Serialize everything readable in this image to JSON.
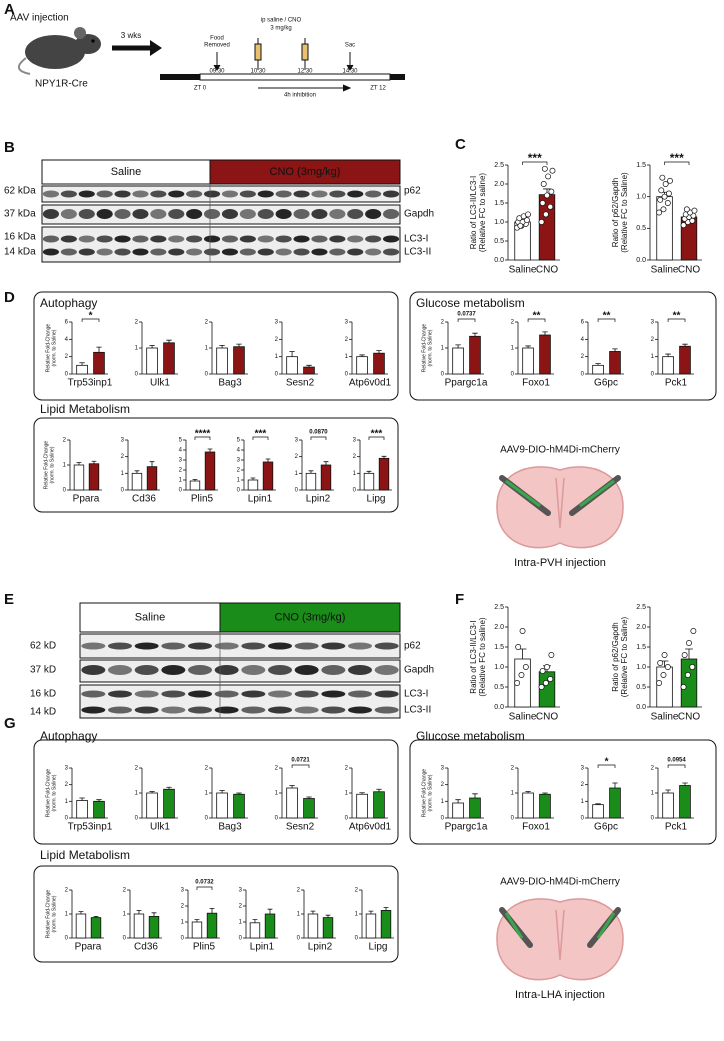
{
  "panel_labels": [
    "A",
    "B",
    "C",
    "D",
    "E",
    "F",
    "G"
  ],
  "timeline": {
    "injection_title": "AAV injection",
    "strain": "NPY1R-Cre",
    "wait": "3 wks",
    "food": [
      "Food",
      "Removed"
    ],
    "treatment": [
      "ip saline / CNO",
      "3 mg/kg"
    ],
    "sac": "Sac",
    "times": [
      "09:30",
      "10:30",
      "12:30",
      "14:30"
    ],
    "start": "ZT 0",
    "end": "ZT 12",
    "window": "4h inhibition"
  },
  "blots": [
    {
      "conditions": [
        "Saline",
        "CNO (3mg/kg)"
      ],
      "color": "#8b1414",
      "markers": [
        "62 kDa",
        "37 kDa",
        "16 kDa",
        "14 kDa"
      ],
      "proteins": [
        "p62",
        "Gapdh",
        "LC3-I",
        "LC3-II"
      ]
    },
    {
      "conditions": [
        "Saline",
        "CNO (3mg/kg)"
      ],
      "color": "#1a8c1a",
      "markers": [
        "62 kD",
        "37 kD",
        "16 kD",
        "14 kD"
      ],
      "proteins": [
        "p62",
        "Gapdh",
        "LC3-I",
        "LC3-II"
      ]
    }
  ],
  "groups": [
    "Autophagy",
    "Glucose metabolism",
    "Lipid Metabolism",
    "Autophagy",
    "Glucose metabolism",
    "Lipid Metabolism"
  ],
  "illustrations": [
    {
      "vector": "AAV9-DIO-hM4Di-mCherry",
      "site": "Intra-PVH injection"
    },
    {
      "vector": "AAV9-DIO-hM4Di-mCherry",
      "site": "Intra-LHA injection"
    }
  ],
  "chart_data": [
    {
      "type": "bar",
      "categories": [
        "Saline",
        "CNO"
      ],
      "ylabel": [
        "Ratio of LC3-II/LC3-I",
        "(Relative FC to saline)"
      ],
      "colors": [
        "#ffffff",
        "#8b1414"
      ],
      "values": [
        1.0,
        1.72
      ],
      "errors": [
        0.05,
        0.15
      ],
      "points": [
        [
          0.85,
          0.9,
          0.95,
          1.0,
          1.0,
          1.05,
          1.1,
          1.15,
          1.2,
          0.9
        ],
        [
          1.0,
          1.2,
          1.4,
          1.5,
          1.7,
          1.8,
          2.0,
          2.2,
          2.35,
          2.4
        ]
      ],
      "ylim": [
        0,
        2.5
      ],
      "yticks": [
        {
          "value": 0,
          "label": "0.0"
        },
        {
          "value": 0.5,
          "label": "0.5"
        },
        {
          "value": 1,
          "label": "1.0"
        },
        {
          "value": 1.5,
          "label": "1.5"
        },
        {
          "value": 2,
          "label": "2.0"
        },
        {
          "value": 2.5,
          "label": "2.5"
        }
      ],
      "significance": "***"
    },
    {
      "type": "bar",
      "categories": [
        "Saline",
        "CNO"
      ],
      "ylabel": [
        "Ratio of p62/Gapdh",
        "(Relative FC to Saline)"
      ],
      "colors": [
        "#ffffff",
        "#8b1414"
      ],
      "values": [
        1.0,
        0.68
      ],
      "errors": [
        0.07,
        0.04
      ],
      "points": [
        [
          0.75,
          0.8,
          0.9,
          0.95,
          1.0,
          1.05,
          1.1,
          1.2,
          1.25,
          1.3
        ],
        [
          0.55,
          0.6,
          0.62,
          0.65,
          0.68,
          0.7,
          0.72,
          0.75,
          0.78,
          0.8
        ]
      ],
      "ylim": [
        0,
        1.5
      ],
      "yticks": [
        {
          "value": 0,
          "label": "0.0"
        },
        {
          "value": 0.5,
          "label": "0.5"
        },
        {
          "value": 1,
          "label": "1.0"
        },
        {
          "value": 1.5,
          "label": "1.5"
        }
      ],
      "significance": "***"
    },
    {
      "type": "bar",
      "xlabel": "Trp53inp1",
      "ylabel": [
        "Relative Fold-Change",
        "(norm. to Saline)"
      ],
      "colors": [
        "#ffffff",
        "#8b1414"
      ],
      "values": [
        1.0,
        2.5
      ],
      "errors": [
        0.3,
        0.6
      ],
      "ylim": [
        0,
        6
      ],
      "yticks": [
        0,
        2,
        4,
        6
      ],
      "significance": "*"
    },
    {
      "type": "bar",
      "xlabel": "Ulk1",
      "colors": [
        "#ffffff",
        "#8b1414"
      ],
      "values": [
        1.0,
        1.2
      ],
      "errors": [
        0.1,
        0.1
      ],
      "ylim": [
        0,
        2
      ],
      "yticks": [
        0,
        1,
        2
      ]
    },
    {
      "type": "bar",
      "xlabel": "Bag3",
      "colors": [
        "#ffffff",
        "#8b1414"
      ],
      "values": [
        1.0,
        1.05
      ],
      "errors": [
        0.1,
        0.1
      ],
      "ylim": [
        0,
        2
      ],
      "yticks": [
        0,
        1,
        2
      ]
    },
    {
      "type": "bar",
      "xlabel": "Sesn2",
      "colors": [
        "#ffffff",
        "#8b1414"
      ],
      "values": [
        1.0,
        0.4
      ],
      "errors": [
        0.3,
        0.1
      ],
      "ylim": [
        0,
        3
      ],
      "yticks": [
        0,
        1,
        2,
        3
      ]
    },
    {
      "type": "bar",
      "xlabel": "Atp6v0d1",
      "colors": [
        "#ffffff",
        "#8b1414"
      ],
      "values": [
        1.0,
        1.2
      ],
      "errors": [
        0.1,
        0.15
      ],
      "ylim": [
        0,
        3
      ],
      "yticks": [
        0,
        1,
        2,
        3
      ]
    },
    {
      "type": "bar",
      "xlabel": "Ppargc1a",
      "ylabel": [
        "Relative Fold-Change",
        "(norm. to Saline)"
      ],
      "colors": [
        "#ffffff",
        "#8b1414"
      ],
      "values": [
        1.0,
        1.45
      ],
      "errors": [
        0.12,
        0.12
      ],
      "ylim": [
        0,
        2
      ],
      "yticks": [
        0,
        1,
        2
      ],
      "significance": "0.0737"
    },
    {
      "type": "bar",
      "xlabel": "Foxo1",
      "colors": [
        "#ffffff",
        "#8b1414"
      ],
      "values": [
        1.0,
        1.5
      ],
      "errors": [
        0.08,
        0.12
      ],
      "ylim": [
        0,
        2
      ],
      "yticks": [
        0,
        1,
        2
      ],
      "significance": "**"
    },
    {
      "type": "bar",
      "xlabel": "G6pc",
      "colors": [
        "#ffffff",
        "#8b1414"
      ],
      "values": [
        1.0,
        2.6
      ],
      "errors": [
        0.2,
        0.3
      ],
      "ylim": [
        0,
        6
      ],
      "yticks": [
        0,
        2,
        4,
        6
      ],
      "significance": "**"
    },
    {
      "type": "bar",
      "xlabel": "Pck1",
      "colors": [
        "#ffffff",
        "#8b1414"
      ],
      "values": [
        1.0,
        1.6
      ],
      "errors": [
        0.15,
        0.12
      ],
      "ylim": [
        0,
        3
      ],
      "yticks": [
        0,
        1,
        2,
        3
      ],
      "significance": "**"
    },
    {
      "type": "bar",
      "xlabel": "Ppara",
      "ylabel": [
        "Relative Fold-Change",
        "(norm. to Saline)"
      ],
      "colors": [
        "#ffffff",
        "#8b1414"
      ],
      "values": [
        1.0,
        1.05
      ],
      "errors": [
        0.1,
        0.1
      ],
      "ylim": [
        0,
        2
      ],
      "yticks": [
        0,
        1,
        2
      ]
    },
    {
      "type": "bar",
      "xlabel": "Cd36",
      "colors": [
        "#ffffff",
        "#8b1414"
      ],
      "values": [
        1.0,
        1.4
      ],
      "errors": [
        0.15,
        0.3
      ],
      "ylim": [
        0,
        3
      ],
      "yticks": [
        0,
        1,
        2,
        3
      ]
    },
    {
      "type": "bar",
      "xlabel": "Plin5",
      "colors": [
        "#ffffff",
        "#8b1414"
      ],
      "values": [
        0.9,
        3.8
      ],
      "errors": [
        0.15,
        0.3
      ],
      "ylim": [
        0,
        5
      ],
      "yticks": [
        0,
        1,
        2,
        3,
        4,
        5
      ],
      "significance": "****"
    },
    {
      "type": "bar",
      "xlabel": "Lpin1",
      "colors": [
        "#ffffff",
        "#8b1414"
      ],
      "values": [
        1.0,
        2.8
      ],
      "errors": [
        0.2,
        0.3
      ],
      "ylim": [
        0,
        5
      ],
      "yticks": [
        0,
        1,
        2,
        3,
        4,
        5
      ],
      "significance": "***"
    },
    {
      "type": "bar",
      "xlabel": "Lpin2",
      "colors": [
        "#ffffff",
        "#8b1414"
      ],
      "values": [
        1.0,
        1.5
      ],
      "errors": [
        0.15,
        0.2
      ],
      "ylim": [
        0,
        3
      ],
      "yticks": [
        0,
        1,
        2,
        3
      ],
      "significance": "0.0870"
    },
    {
      "type": "bar",
      "xlabel": "Lipg",
      "colors": [
        "#ffffff",
        "#8b1414"
      ],
      "values": [
        1.0,
        1.9
      ],
      "errors": [
        0.12,
        0.12
      ],
      "ylim": [
        0,
        3
      ],
      "yticks": [
        0,
        1,
        2,
        3
      ],
      "significance": "***"
    },
    {
      "type": "bar",
      "categories": [
        "Saline",
        "CNO"
      ],
      "ylabel": [
        "Ratio of LC3-II/LC3-I",
        "(Relative FC to saline)"
      ],
      "colors": [
        "#ffffff",
        "#1a8c1a"
      ],
      "values": [
        1.2,
        0.88
      ],
      "errors": [
        0.25,
        0.15
      ],
      "points": [
        [
          0.6,
          0.8,
          1.0,
          1.5,
          1.9
        ],
        [
          0.5,
          0.6,
          0.7,
          0.9,
          1.0,
          1.3
        ]
      ],
      "ylim": [
        0,
        2.5
      ],
      "yticks": [
        {
          "value": 0,
          "label": "0.0"
        },
        {
          "value": 0.5,
          "label": "0.5"
        },
        {
          "value": 1,
          "label": "1.0"
        },
        {
          "value": 1.5,
          "label": "1.5"
        },
        {
          "value": 2,
          "label": "2.0"
        },
        {
          "value": 2.5,
          "label": "2.5"
        }
      ]
    },
    {
      "type": "bar",
      "categories": [
        "Saline",
        "CNO"
      ],
      "ylabel": [
        "Ratio of p62/Gapdh",
        "(Relative FC to Saline)"
      ],
      "colors": [
        "#ffffff",
        "#1a8c1a"
      ],
      "values": [
        1.0,
        1.2
      ],
      "errors": [
        0.15,
        0.25
      ],
      "points": [
        [
          0.6,
          0.8,
          1.0,
          1.1,
          1.3
        ],
        [
          0.5,
          0.8,
          1.0,
          1.3,
          1.6,
          1.9
        ]
      ],
      "ylim": [
        0,
        2.5
      ],
      "yticks": [
        {
          "value": 0,
          "label": "0.0"
        },
        {
          "value": 0.5,
          "label": "0.5"
        },
        {
          "value": 1,
          "label": "1.0"
        },
        {
          "value": 1.5,
          "label": "1.5"
        },
        {
          "value": 2,
          "label": "2.0"
        },
        {
          "value": 2.5,
          "label": "2.5"
        }
      ]
    },
    {
      "type": "bar",
      "xlabel": "Trp53inp1",
      "ylabel": [
        "Relative Fold-Change",
        "(norm. to Saline)"
      ],
      "colors": [
        "#ffffff",
        "#1a8c1a"
      ],
      "values": [
        1.05,
        1.0
      ],
      "errors": [
        0.15,
        0.1
      ],
      "ylim": [
        0,
        3
      ],
      "yticks": [
        0,
        1,
        2,
        3
      ]
    },
    {
      "type": "bar",
      "xlabel": "Ulk1",
      "colors": [
        "#ffffff",
        "#1a8c1a"
      ],
      "values": [
        1.0,
        1.15
      ],
      "errors": [
        0.06,
        0.08
      ],
      "ylim": [
        0,
        2
      ],
      "yticks": [
        0,
        1,
        2
      ]
    },
    {
      "type": "bar",
      "xlabel": "Bag3",
      "colors": [
        "#ffffff",
        "#1a8c1a"
      ],
      "values": [
        1.0,
        0.95
      ],
      "errors": [
        0.1,
        0.05
      ],
      "ylim": [
        0,
        2
      ],
      "yticks": [
        0,
        1,
        2
      ]
    },
    {
      "type": "bar",
      "xlabel": "Sesn2",
      "colors": [
        "#ffffff",
        "#1a8c1a"
      ],
      "values": [
        1.2,
        0.78
      ],
      "errors": [
        0.1,
        0.06
      ],
      "ylim": [
        0,
        2
      ],
      "yticks": [
        0,
        1,
        2
      ],
      "significance": "0.0721"
    },
    {
      "type": "bar",
      "xlabel": "Atp6v0d1",
      "colors": [
        "#ffffff",
        "#1a8c1a"
      ],
      "values": [
        0.95,
        1.05
      ],
      "errors": [
        0.06,
        0.1
      ],
      "ylim": [
        0,
        2
      ],
      "yticks": [
        0,
        1,
        2
      ]
    },
    {
      "type": "bar",
      "xlabel": "Ppargc1a",
      "ylabel": [
        "Relative Fold-Change",
        "(norm. to Saline)"
      ],
      "colors": [
        "#ffffff",
        "#1a8c1a"
      ],
      "values": [
        0.9,
        1.2
      ],
      "errors": [
        0.2,
        0.25
      ],
      "ylim": [
        0,
        3
      ],
      "yticks": [
        0,
        1,
        2,
        3
      ]
    },
    {
      "type": "bar",
      "xlabel": "Foxo1",
      "colors": [
        "#ffffff",
        "#1a8c1a"
      ],
      "values": [
        1.0,
        0.95
      ],
      "errors": [
        0.06,
        0.05
      ],
      "ylim": [
        0,
        2
      ],
      "yticks": [
        0,
        1,
        2
      ]
    },
    {
      "type": "bar",
      "xlabel": "G6pc",
      "colors": [
        "#ffffff",
        "#1a8c1a"
      ],
      "values": [
        0.8,
        1.8
      ],
      "errors": [
        0.05,
        0.3
      ],
      "ylim": [
        0,
        3
      ],
      "yticks": [
        0,
        1,
        2,
        3
      ],
      "significance": "*"
    },
    {
      "type": "bar",
      "xlabel": "Pck1",
      "colors": [
        "#ffffff",
        "#1a8c1a"
      ],
      "values": [
        1.0,
        1.3
      ],
      "errors": [
        0.12,
        0.1
      ],
      "ylim": [
        0,
        2
      ],
      "yticks": [
        0,
        1,
        2
      ],
      "significance": "0.0954"
    },
    {
      "type": "bar",
      "xlabel": "Ppara",
      "ylabel": [
        "Relative Fold-Change",
        "(norm. to Saline)"
      ],
      "colors": [
        "#ffffff",
        "#1a8c1a"
      ],
      "values": [
        1.0,
        0.85
      ],
      "errors": [
        0.1,
        0.05
      ],
      "ylim": [
        0,
        2
      ],
      "yticks": [
        0,
        1,
        2
      ]
    },
    {
      "type": "bar",
      "xlabel": "Cd36",
      "colors": [
        "#ffffff",
        "#1a8c1a"
      ],
      "values": [
        1.0,
        0.9
      ],
      "errors": [
        0.15,
        0.15
      ],
      "ylim": [
        0,
        2
      ],
      "yticks": [
        0,
        1,
        2
      ]
    },
    {
      "type": "bar",
      "xlabel": "Plin5",
      "colors": [
        "#ffffff",
        "#1a8c1a"
      ],
      "values": [
        1.0,
        1.55
      ],
      "errors": [
        0.15,
        0.3
      ],
      "ylim": [
        0,
        3
      ],
      "yticks": [
        0,
        1,
        2,
        3
      ],
      "significance": "0.0732"
    },
    {
      "type": "bar",
      "xlabel": "Lpin1",
      "colors": [
        "#ffffff",
        "#1a8c1a"
      ],
      "values": [
        0.95,
        1.5
      ],
      "errors": [
        0.2,
        0.3
      ],
      "ylim": [
        0,
        3
      ],
      "yticks": [
        0,
        1,
        2,
        3
      ]
    },
    {
      "type": "bar",
      "xlabel": "Lpin2",
      "colors": [
        "#ffffff",
        "#1a8c1a"
      ],
      "values": [
        1.0,
        0.85
      ],
      "errors": [
        0.12,
        0.1
      ],
      "ylim": [
        0,
        2
      ],
      "yticks": [
        0,
        1,
        2
      ]
    },
    {
      "type": "bar",
      "xlabel": "Lipg",
      "colors": [
        "#ffffff",
        "#1a8c1a"
      ],
      "values": [
        1.0,
        1.15
      ],
      "errors": [
        0.12,
        0.12
      ],
      "ylim": [
        0,
        2
      ],
      "yticks": [
        0,
        1,
        2
      ]
    }
  ]
}
